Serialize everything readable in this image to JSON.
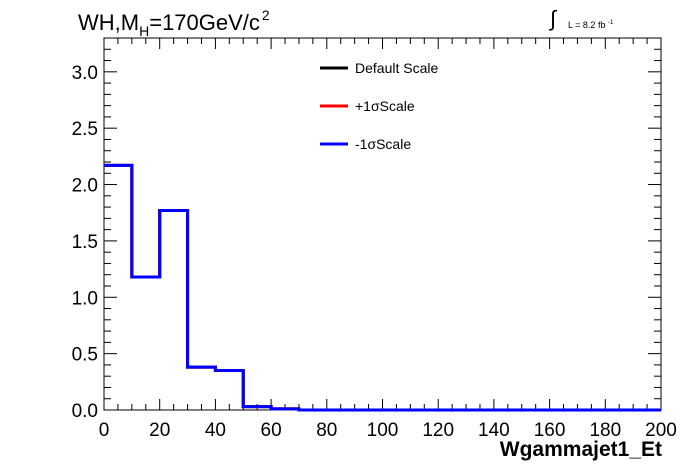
{
  "chart_data": {
    "type": "line",
    "title_parts": {
      "prefix": "WH,M",
      "subscript": "H",
      "middle": "=170GeV/c",
      "superscript": "2"
    },
    "luminosity": {
      "integral": "∫",
      "text": "L = 8.2 fb",
      "superscript": "-1"
    },
    "xlabel": "Wgammajet1_Et",
    "ylabel": "",
    "xlim": [
      0,
      200
    ],
    "ylim": [
      0,
      3.3
    ],
    "xticks": [
      "0",
      "20",
      "40",
      "60",
      "80",
      "100",
      "120",
      "140",
      "160",
      "180",
      "200"
    ],
    "yticks": [
      "0.0",
      "0.5",
      "1.0",
      "1.5",
      "2.0",
      "2.5",
      "3.0"
    ],
    "bin_edges": [
      0,
      10,
      20,
      30,
      40,
      50,
      60,
      70,
      80,
      90,
      100,
      110,
      120,
      130,
      140,
      150,
      160,
      170,
      180,
      190,
      200
    ],
    "legend_position": "top-center",
    "series": [
      {
        "name": "Default Scale",
        "color": "#000000",
        "values": [
          2.17,
          1.18,
          1.77,
          0.38,
          0.35,
          0.03,
          0.01,
          0.0,
          0.0,
          0.0,
          0.0,
          0.0,
          0.0,
          0.0,
          0.0,
          0.0,
          0.0,
          0.0,
          0.0,
          0.0
        ]
      },
      {
        "name": "+1σScale",
        "color": "#ff0000",
        "values": [
          2.17,
          1.18,
          1.77,
          0.38,
          0.35,
          0.03,
          0.01,
          0.0,
          0.0,
          0.0,
          0.0,
          0.0,
          0.0,
          0.0,
          0.0,
          0.0,
          0.0,
          0.0,
          0.0,
          0.0
        ]
      },
      {
        "name": "-1σScale",
        "color": "#0000ff",
        "values": [
          2.17,
          1.18,
          1.77,
          0.38,
          0.35,
          0.03,
          0.01,
          0.0,
          0.0,
          0.0,
          0.0,
          0.0,
          0.0,
          0.0,
          0.0,
          0.0,
          0.0,
          0.0,
          0.0,
          0.0
        ]
      }
    ]
  }
}
